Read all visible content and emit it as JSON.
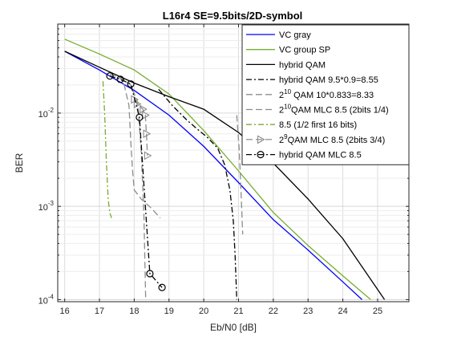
{
  "chart_data": {
    "type": "line",
    "title": "L16r4 SE=9.5bits/2D-symbol",
    "xlabel": "Eb/N0 [dB]",
    "ylabel": "BER",
    "xlim": [
      15.8,
      25.9
    ],
    "ylim": [
      9.5e-05,
      0.09
    ],
    "yscale": "log",
    "grid": true,
    "legend_position": "top-right",
    "xticks": [
      16,
      17,
      18,
      19,
      20,
      21,
      22,
      23,
      24,
      25
    ],
    "xtick_labels": [
      "16",
      "17",
      "18",
      "19",
      "20",
      "21",
      "22",
      "23",
      "24",
      "25"
    ],
    "yticks": [
      0.0001,
      0.001,
      0.01
    ],
    "ytick_labels": [
      {
        "base": "10",
        "exp": "-4"
      },
      {
        "base": "10",
        "exp": "-3"
      },
      {
        "base": "10",
        "exp": "-2"
      }
    ],
    "legend_entries": [
      {
        "key": "vc_gray",
        "label": "VC gray"
      },
      {
        "key": "vc_group_sp",
        "label": "VC group SP"
      },
      {
        "key": "hybrid_qam",
        "label": "hybrid QAM"
      },
      {
        "key": "hybrid_855",
        "label": "hybrid QAM 9.5*0.9=8.55"
      },
      {
        "key": "qam_833",
        "pre": "2",
        "sup": "10",
        "post": " QAM 10*0.833=8.33"
      },
      {
        "key": "qam_mlc85",
        "pre": "2",
        "sup": "10",
        "post": "QAM MLC 8.5 (2bits 1/4)"
      },
      {
        "key": "half_first16",
        "label": "8.5 (1/2 first 16 bits)"
      },
      {
        "key": "qam9_mlc85",
        "pre": "2",
        "sup": "9",
        "post": "QAM MLC 8.5 (2bits 3/4)"
      },
      {
        "key": "hybrid_mlc85",
        "label": "hybrid QAM MLC 8.5"
      }
    ],
    "series": [
      {
        "key": "vc_gray",
        "color": "#0000ff",
        "dash": "",
        "marker": "none",
        "x": [
          16,
          17,
          18,
          19,
          20,
          21,
          22,
          23,
          24,
          24.55
        ],
        "y": [
          0.046,
          0.029,
          0.0175,
          0.0095,
          0.0044,
          0.0018,
          0.00072,
          0.00034,
          0.000155,
          0.0001
        ]
      },
      {
        "key": "vc_group_sp",
        "color": "#77ac30",
        "dash": "",
        "marker": "none",
        "x": [
          16,
          17,
          18,
          19,
          20,
          21,
          22,
          23,
          24,
          24.8
        ],
        "y": [
          0.062,
          0.043,
          0.029,
          0.016,
          0.0065,
          0.0024,
          0.00086,
          0.00038,
          0.00018,
          0.0001
        ]
      },
      {
        "key": "hybrid_qam",
        "color": "#000000",
        "dash": "",
        "marker": "none",
        "x": [
          16,
          17,
          18,
          19,
          20,
          21,
          22,
          23,
          24,
          25.2
        ],
        "y": [
          0.046,
          0.031,
          0.021,
          0.015,
          0.011,
          0.0062,
          0.0029,
          0.0012,
          0.00045,
          0.0001
        ]
      },
      {
        "key": "hybrid_855",
        "color": "#000000",
        "dash": "7 3 2 3",
        "marker": "none",
        "x": [
          18.7,
          19.1,
          19.5,
          19.8,
          20.1,
          20.4,
          20.6,
          20.75,
          20.85,
          20.9,
          20.95
        ],
        "y": [
          0.018,
          0.012,
          0.0085,
          0.0068,
          0.0055,
          0.0042,
          0.0028,
          0.0015,
          0.0007,
          0.0003,
          0.0001
        ]
      },
      {
        "key": "qam_833",
        "color": "#8c8c8c",
        "dash": "8 4",
        "marker": "none",
        "x": [
          17.3,
          17.6,
          17.9,
          18.1,
          18.2,
          18.28,
          18.33
        ],
        "y": [
          0.026,
          0.024,
          0.02,
          0.013,
          0.004,
          0.0008,
          0.0001
        ]
      },
      {
        "key": "qam_mlc85",
        "color": "#8c8c8c",
        "dash": "8 4",
        "marker": "none",
        "x": [
          17.55,
          17.7,
          17.85,
          17.9,
          17.95,
          18.0,
          18.2,
          18.5,
          18.75
        ],
        "y": [
          0.025,
          0.021,
          0.012,
          0.005,
          0.0025,
          0.0015,
          0.0012,
          0.00095,
          0.00075
        ]
      },
      {
        "key": "half_first16",
        "color": "#77ac30",
        "dash": "7 3 2 3",
        "marker": "none",
        "x": [
          17.1,
          17.15,
          17.2,
          17.25,
          17.3,
          17.35
        ],
        "y": [
          0.022,
          0.01,
          0.003,
          0.0012,
          0.00085,
          0.00075
        ]
      },
      {
        "key": "qam9_mlc85",
        "color": "#8c8c8c",
        "dash": "8 4",
        "marker": "triangle",
        "x": [
          18.0,
          18.08,
          18.25,
          18.32,
          18.35,
          18.38
        ],
        "y": [
          0.014,
          0.0125,
          0.011,
          0.0095,
          0.006,
          0.0035
        ]
      },
      {
        "key": "qam9_tail",
        "color": "#8c8c8c",
        "dash": "8 4",
        "marker": "none",
        "x": [
          20.95,
          21.02,
          21.08,
          21.12
        ],
        "y": [
          0.0095,
          0.004,
          0.0012,
          0.0005
        ]
      },
      {
        "key": "hybrid_mlc85",
        "color": "#000000",
        "dash": "7 3 2 3",
        "marker": "circle",
        "x": [
          17.3,
          17.6,
          17.9,
          18.15,
          18.45,
          18.8
        ],
        "y": [
          0.025,
          0.023,
          0.0205,
          0.009,
          0.00019,
          0.000135
        ]
      }
    ]
  }
}
